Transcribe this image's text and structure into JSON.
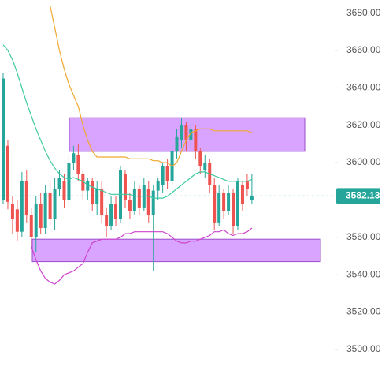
{
  "chart_data": {
    "type": "candlestick",
    "ylim": [
      3489,
      3687
    ],
    "yticks": [
      3500,
      3520,
      3540,
      3560,
      3580,
      3600,
      3620,
      3640,
      3660,
      3680
    ],
    "yticks_labels": [
      "3500.00",
      "3520.00",
      "3540.00",
      "3560.00",
      "3580.00",
      "3600.00",
      "3620.00",
      "3640.00",
      "3660.00",
      "3680.00"
    ],
    "up_color": "#26a69a",
    "down_color": "#ef5350",
    "categories": [
      null,
      null,
      null,
      null,
      null,
      null,
      null,
      null,
      null,
      null,
      null,
      null,
      null,
      null,
      null,
      null,
      null,
      null,
      null,
      null,
      null,
      null,
      null,
      null,
      null,
      null,
      null,
      null,
      null,
      null,
      null,
      null,
      null,
      null,
      null,
      null,
      null,
      null,
      null,
      null,
      null,
      null,
      null,
      null,
      null,
      null,
      null,
      null,
      null,
      null,
      null,
      null,
      null,
      null
    ],
    "open": [
      3580,
      3609,
      3578,
      3575,
      3563,
      3590,
      3572,
      3560,
      3578,
      3565,
      3584,
      3570,
      3586,
      3590,
      3580,
      3600,
      3604,
      3594,
      3585,
      3590,
      3578,
      3586,
      3572,
      3566,
      3578,
      3570,
      3594,
      3580,
      3574,
      3586,
      3576,
      3586,
      3572,
      3585,
      3588,
      3598,
      3590,
      3606,
      3612,
      3620,
      3612,
      3618,
      3606,
      3596,
      3600,
      3588,
      3568,
      3584,
      3574,
      3584,
      3566,
      3588,
      3590,
      3580
    ],
    "high": [
      3648,
      3612,
      3582,
      3580,
      3595,
      3596,
      3576,
      3582,
      3584,
      3588,
      3590,
      3592,
      3596,
      3594,
      3604,
      3609,
      3610,
      3596,
      3592,
      3592,
      3590,
      3590,
      3576,
      3582,
      3582,
      3598,
      3596,
      3584,
      3590,
      3588,
      3592,
      3590,
      3588,
      3592,
      3600,
      3602,
      3610,
      3618,
      3624,
      3622,
      3620,
      3620,
      3608,
      3604,
      3602,
      3592,
      3588,
      3586,
      3588,
      3586,
      3592,
      3590,
      3594,
      3594
    ],
    "low": [
      3578,
      3575,
      3562,
      3558,
      3560,
      3568,
      3554,
      3552,
      3562,
      3562,
      3566,
      3564,
      3582,
      3576,
      3578,
      3596,
      3590,
      3580,
      3580,
      3574,
      3572,
      3568,
      3560,
      3564,
      3566,
      3568,
      3576,
      3570,
      3572,
      3572,
      3574,
      3568,
      3542,
      3580,
      3584,
      3586,
      3588,
      3602,
      3608,
      3606,
      3608,
      3602,
      3594,
      3592,
      3584,
      3564,
      3566,
      3570,
      3572,
      3562,
      3564,
      3574,
      3582,
      3578
    ],
    "close": [
      3645,
      3579,
      3570,
      3563,
      3590,
      3572,
      3560,
      3578,
      3565,
      3584,
      3570,
      3586,
      3592,
      3580,
      3600,
      3605,
      3594,
      3585,
      3590,
      3578,
      3586,
      3572,
      3566,
      3578,
      3570,
      3596,
      3580,
      3574,
      3586,
      3576,
      3588,
      3572,
      3585,
      3590,
      3598,
      3590,
      3606,
      3614,
      3620,
      3612,
      3618,
      3606,
      3598,
      3600,
      3588,
      3568,
      3584,
      3574,
      3584,
      3566,
      3590,
      3578,
      3586,
      3582.13
    ],
    "series": [
      {
        "color": "#f0a830",
        "values": [
          null,
          null,
          null,
          null,
          null,
          null,
          null,
          null,
          null,
          null,
          3684,
          3672,
          3660,
          3650,
          3642,
          3636,
          3630,
          3620,
          3612,
          3606,
          3603,
          3603,
          3603,
          3603,
          3603,
          3603,
          3603,
          3602,
          3602,
          3602,
          3602,
          3602,
          3601,
          3601,
          3600,
          3600,
          3598,
          3600,
          3606,
          3612,
          3616,
          3617,
          3618,
          3618,
          3618,
          3617,
          3617,
          3617,
          3617,
          3617,
          3617,
          3617,
          3617,
          3616
        ]
      },
      {
        "color": "#3ec9a0",
        "values": [
          3663,
          3660,
          3655,
          3648,
          3640,
          3632,
          3625,
          3618,
          3612,
          3606,
          3601,
          3597,
          3594,
          3592,
          3591,
          3592,
          3591,
          3590,
          3588,
          3587,
          3586,
          3585,
          3584,
          3583,
          3583,
          3583,
          3583,
          3583,
          3582,
          3582,
          3582,
          3582,
          3581,
          3581,
          3581,
          3582,
          3584,
          3586,
          3588,
          3590,
          3592,
          3594,
          3595,
          3595,
          3594,
          3593,
          3592,
          3591,
          3590,
          3590,
          3590,
          3590,
          3590,
          3591
        ]
      },
      {
        "color": "#cc44cc",
        "values": [
          null,
          null,
          null,
          null,
          null,
          null,
          3555,
          3548,
          3542,
          3538,
          3536,
          3535,
          3537,
          3540,
          3541,
          3542,
          3544,
          3546,
          3552,
          3557,
          3558,
          3559,
          3559,
          3559,
          3559,
          3560,
          3562,
          3562,
          3563,
          3563,
          3563,
          3563,
          3563,
          3563,
          3563,
          3562,
          3560,
          3558,
          3557,
          3557,
          3558,
          3558,
          3559,
          3560,
          3561,
          3563,
          3563,
          3564,
          3562,
          3561,
          3562,
          3562,
          3563,
          3565
        ]
      }
    ],
    "zones": [
      {
        "low": 3606,
        "high": 3624,
        "color": "#c77dff"
      },
      {
        "low": 3547,
        "high": 3559,
        "color": "#c77dff"
      }
    ],
    "last_price": 3582.13,
    "last_price_color": "#26a69a"
  }
}
